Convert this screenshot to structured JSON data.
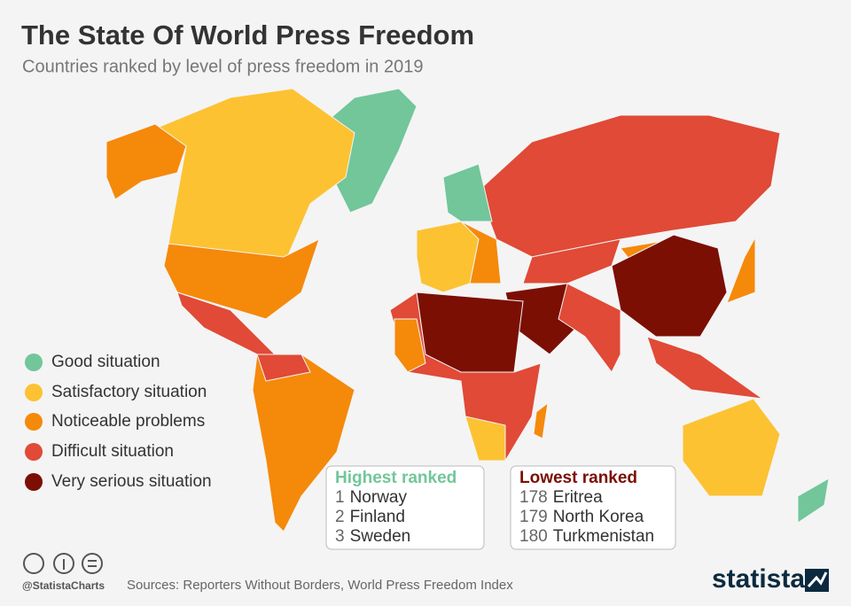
{
  "header": {
    "title": "The State Of World Press Freedom",
    "subtitle": "Countries ranked by level of press freedom in 2019"
  },
  "legend": {
    "items": [
      {
        "label": "Good situation",
        "color": "#72c69a"
      },
      {
        "label": "Satisfactory situation",
        "color": "#fcc232"
      },
      {
        "label": "Noticeable problems",
        "color": "#f5890a"
      },
      {
        "label": "Difficult situation",
        "color": "#e04a36"
      },
      {
        "label": "Very serious situation",
        "color": "#7b0f04"
      }
    ]
  },
  "highest": {
    "title": "Highest ranked",
    "entries": [
      {
        "rank": 1,
        "country": "Norway"
      },
      {
        "rank": 2,
        "country": "Finland"
      },
      {
        "rank": 3,
        "country": "Sweden"
      }
    ]
  },
  "lowest": {
    "title": "Lowest ranked",
    "entries": [
      {
        "rank": 178,
        "country": "Eritrea"
      },
      {
        "rank": 179,
        "country": "North Korea"
      },
      {
        "rank": 180,
        "country": "Turkmenistan"
      }
    ]
  },
  "footer": {
    "handle": "@StatistaCharts",
    "source": "Sources: Reporters Without Borders, World Press Freedom Index",
    "brand": "statista"
  }
}
